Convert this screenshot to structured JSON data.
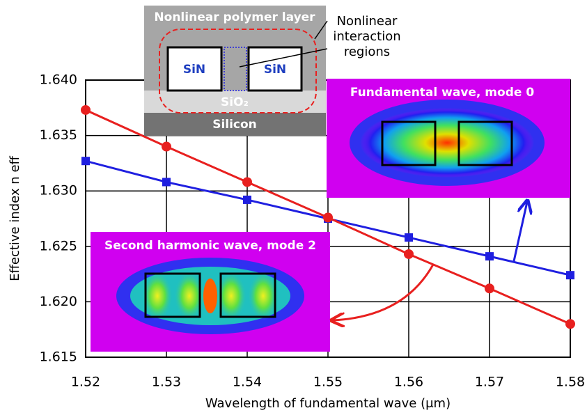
{
  "chart_data": {
    "type": "line",
    "x_label": "Wavelength of fundamental wave (μm)",
    "y_label": "Effective index n eff",
    "x": [
      1.52,
      1.53,
      1.54,
      1.55,
      1.56,
      1.57,
      1.58
    ],
    "series": [
      {
        "color": "#1f1fe0",
        "marker": "square",
        "values": [
          1.6327,
          1.6308,
          1.6292,
          1.6275,
          1.6258,
          1.6241,
          1.6224
        ]
      },
      {
        "color": "#e8201f",
        "marker": "circle",
        "values": [
          1.6373,
          1.634,
          1.6308,
          1.6276,
          1.6243,
          1.6212,
          1.618
        ]
      }
    ],
    "xlim": [
      1.52,
      1.58
    ],
    "xticks": [
      1.52,
      1.53,
      1.54,
      1.55,
      1.56,
      1.57,
      1.58
    ],
    "ylim": [
      1.615,
      1.64
    ],
    "yticks": [
      {
        "value": 1.615,
        "label": "1.615"
      },
      {
        "value": 1.62,
        "label": "1.620"
      },
      {
        "value": 1.625,
        "label": "1.625"
      },
      {
        "value": 1.63,
        "label": "1.630"
      },
      {
        "value": 1.635,
        "label": "1.635"
      },
      {
        "value": 1.64,
        "label": "1.640"
      }
    ],
    "annotations": {
      "polymer": "Nonlinear polymer layer",
      "sin_left": "SiN",
      "sin_right": "SiN",
      "oxide": "SiO₂",
      "silicon": "Silicon",
      "regions": [
        "Nonlinear",
        "interaction",
        "regions"
      ],
      "fundamental": "Fundamental wave, mode 0",
      "second_harmonic": "Second harmonic wave, mode 2"
    }
  }
}
